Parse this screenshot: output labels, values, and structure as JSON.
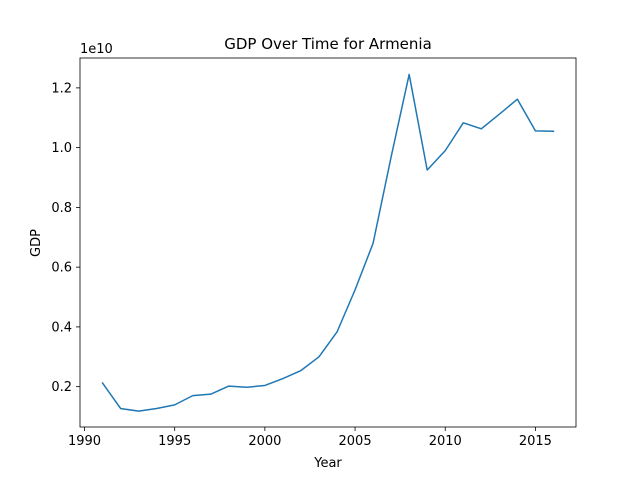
{
  "chart_data": {
    "type": "line",
    "title": "GDP Over Time for Armenia",
    "xlabel": "Year",
    "ylabel": "GDP",
    "offset_label": "1e10",
    "xlim": [
      1989.75,
      2017.25
    ],
    "ylim": [
      0.065,
      1.3
    ],
    "y_scale_note": "values in units of 1e10",
    "x_ticks": [
      1990,
      1995,
      2000,
      2005,
      2010,
      2015
    ],
    "x_tick_labels": [
      "1990",
      "1995",
      "2000",
      "2005",
      "2010",
      "2015"
    ],
    "y_ticks": [
      0.2,
      0.4,
      0.6,
      0.8,
      1.0,
      1.2
    ],
    "y_tick_labels": [
      "0.2",
      "0.4",
      "0.6",
      "0.8",
      "1.0",
      "1.2"
    ],
    "grid": false,
    "line_color": "#1f77b4",
    "series": [
      {
        "x": [
          1991,
          1992,
          1993,
          1994,
          1995,
          1996,
          1997,
          1998,
          1999,
          2000,
          2001,
          2002,
          2003,
          2004,
          2005,
          2006,
          2007,
          2008,
          2009,
          2010,
          2011,
          2012,
          2013,
          2014,
          2015,
          2016
        ],
        "values": [
          0.212,
          0.127,
          0.118,
          0.127,
          0.139,
          0.17,
          0.175,
          0.202,
          0.198,
          0.204,
          0.227,
          0.254,
          0.3,
          0.383,
          0.524,
          0.68,
          0.969,
          1.245,
          0.925,
          0.99,
          1.083,
          1.063,
          1.112,
          1.162,
          1.056,
          1.055
        ]
      }
    ]
  }
}
